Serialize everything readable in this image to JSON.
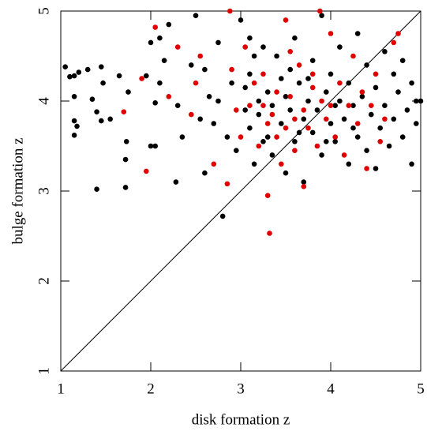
{
  "chart_data": {
    "type": "scatter",
    "xlabel": "disk formation z",
    "ylabel": "bulge formation z",
    "xlim": [
      1,
      5
    ],
    "ylim": [
      1,
      5
    ],
    "xticks": [
      1,
      2,
      3,
      4,
      5
    ],
    "yticks": [
      1,
      2,
      3,
      4,
      5
    ],
    "series": [
      {
        "color": "#000000",
        "x": [
          1.05,
          1.1,
          1.15,
          1.2,
          1.3,
          1.45,
          1.47,
          1.35,
          1.15,
          1.15,
          1.18,
          1.15,
          1.4,
          1.45,
          1.4,
          1.72,
          1.72,
          1.73,
          1.75,
          1.65,
          1.55,
          1.95,
          2.0,
          2.05,
          2.1,
          2.15,
          2.2,
          2.3,
          2.28,
          2.35,
          2.45,
          2.5,
          2.55,
          2.6,
          2.65,
          2.75,
          2.8,
          2.85,
          2.9,
          2.95,
          3.0,
          3.05,
          3.1,
          3.1,
          3.15,
          3.2,
          3.2,
          3.25,
          3.3,
          3.3,
          3.35,
          3.35,
          3.4,
          3.45,
          3.5,
          3.5,
          3.55,
          3.6,
          3.6,
          3.65,
          3.7,
          3.7,
          3.75,
          3.8,
          3.8,
          3.85,
          3.9,
          3.9,
          3.95,
          4.0,
          4.0,
          4.05,
          4.1,
          4.1,
          4.15,
          4.2,
          4.2,
          4.25,
          4.3,
          4.3,
          4.35,
          4.4,
          4.4,
          4.45,
          4.5,
          4.5,
          4.55,
          4.6,
          4.6,
          4.65,
          4.7,
          4.7,
          4.75,
          4.8,
          4.8,
          4.85,
          4.9,
          4.9,
          4.95,
          5.0,
          4.95,
          3.05,
          3.15,
          3.45,
          3.55,
          3.75,
          3.95,
          3.65,
          3.25,
          4.05,
          4.25,
          2.0,
          2.1,
          2.05,
          2.6,
          2.7,
          2.75,
          3.1
        ],
        "values": [
          4.38,
          4.27,
          4.28,
          4.32,
          4.35,
          4.38,
          4.2,
          4.02,
          4.05,
          3.78,
          3.72,
          3.62,
          3.88,
          3.78,
          3.02,
          3.04,
          3.35,
          3.55,
          4.1,
          4.28,
          3.8,
          4.28,
          3.5,
          3.98,
          4.2,
          4.45,
          4.85,
          3.95,
          3.1,
          3.6,
          4.4,
          4.95,
          3.8,
          3.2,
          4.05,
          4.65,
          2.72,
          3.6,
          4.2,
          3.45,
          4.9,
          3.9,
          3.7,
          4.3,
          3.3,
          4.0,
          3.85,
          4.6,
          3.6,
          4.1,
          3.95,
          3.4,
          4.5,
          3.75,
          4.05,
          3.2,
          3.9,
          4.7,
          3.55,
          4.2,
          3.8,
          3.1,
          4.0,
          3.65,
          4.45,
          3.9,
          4.95,
          3.4,
          4.1,
          3.75,
          4.3,
          3.55,
          4.0,
          4.6,
          3.8,
          3.3,
          4.2,
          3.95,
          4.75,
          3.6,
          4.05,
          3.45,
          4.4,
          3.85,
          4.15,
          3.25,
          3.7,
          4.55,
          3.95,
          3.5,
          4.3,
          3.8,
          4.1,
          3.6,
          4.45,
          3.9,
          4.2,
          3.3,
          4.0,
          4.0,
          3.75,
          4.15,
          4.5,
          4.25,
          4.35,
          4.25,
          3.55,
          3.65,
          3.55,
          3.95,
          3.7,
          4.65,
          4.7,
          3.5,
          4.35,
          3.75,
          4.0,
          4.7
        ]
      },
      {
        "color": "#e00000",
        "x": [
          1.7,
          1.95,
          1.9,
          2.05,
          2.2,
          2.3,
          2.45,
          2.5,
          2.55,
          2.7,
          2.85,
          2.88,
          2.9,
          3.0,
          3.05,
          3.1,
          3.2,
          3.25,
          3.3,
          3.32,
          3.35,
          3.4,
          3.45,
          3.5,
          3.5,
          3.55,
          3.6,
          3.65,
          3.7,
          3.7,
          3.75,
          3.8,
          3.85,
          3.9,
          3.88,
          3.95,
          4.0,
          4.05,
          4.1,
          4.15,
          4.2,
          4.25,
          4.3,
          4.35,
          4.4,
          4.45,
          4.5,
          4.55,
          4.6,
          4.7,
          4.75,
          3.15,
          3.4,
          3.6,
          3.8,
          3.3,
          3.55,
          4.0,
          2.95,
          3.25
        ],
        "values": [
          3.88,
          3.22,
          4.25,
          4.82,
          4.05,
          4.6,
          3.85,
          4.2,
          4.5,
          3.3,
          3.08,
          5.0,
          4.35,
          3.6,
          4.6,
          3.95,
          3.5,
          4.3,
          2.95,
          2.53,
          3.85,
          4.1,
          3.3,
          4.9,
          3.7,
          4.05,
          3.45,
          4.4,
          3.9,
          3.05,
          3.7,
          4.15,
          3.5,
          4.0,
          5.0,
          3.8,
          4.75,
          3.6,
          4.2,
          3.4,
          3.95,
          4.5,
          3.75,
          4.1,
          3.25,
          3.95,
          4.3,
          3.55,
          3.8,
          4.65,
          4.75,
          4.2,
          3.6,
          3.8,
          4.3,
          3.75,
          4.55,
          3.95,
          3.9,
          3.95
        ]
      }
    ]
  }
}
